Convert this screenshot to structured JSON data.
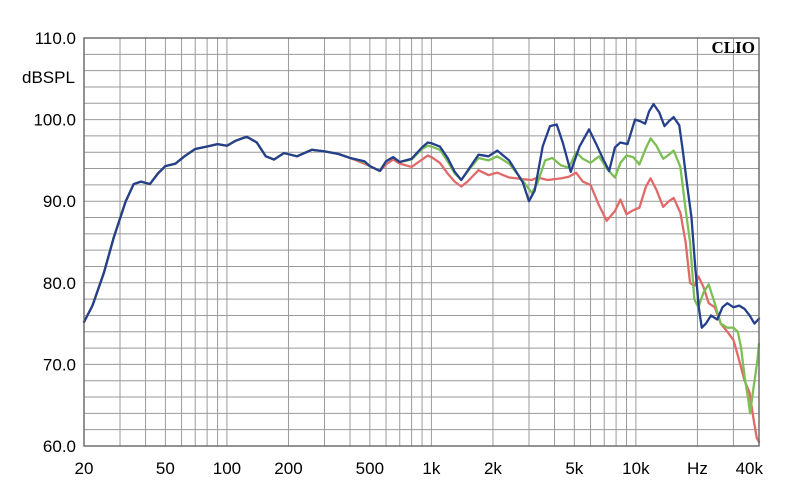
{
  "chart_data": {
    "type": "line",
    "ylabel": "dBSPL",
    "xunit": "Hz",
    "brand": "CLIO",
    "x_scale": "log",
    "xlim": [
      20,
      40000
    ],
    "ylim": [
      60,
      110
    ],
    "grid": true,
    "y_ticks": [
      {
        "value": 110,
        "label": "110.0"
      },
      {
        "value": 100,
        "label": "100.0"
      },
      {
        "value": 90,
        "label": "90.0"
      },
      {
        "value": 80,
        "label": "80.0"
      },
      {
        "value": 70,
        "label": "70.0"
      },
      {
        "value": 60,
        "label": "60.0"
      }
    ],
    "x_ticks": [
      {
        "value": 20,
        "label": "20"
      },
      {
        "value": 50,
        "label": "50"
      },
      {
        "value": 100,
        "label": "100"
      },
      {
        "value": 200,
        "label": "200"
      },
      {
        "value": 500,
        "label": "500"
      },
      {
        "value": 1000,
        "label": "1k"
      },
      {
        "value": 2000,
        "label": "2k"
      },
      {
        "value": 5000,
        "label": "5k"
      },
      {
        "value": 10000,
        "label": "10k"
      },
      {
        "value": 20000,
        "label": "Hz"
      },
      {
        "value": 40000,
        "label": "40k"
      }
    ],
    "series": [
      {
        "color": "#e06a6a",
        "points": [
          [
            20,
            75.2
          ],
          [
            22,
            77.2
          ],
          [
            25,
            81.2
          ],
          [
            28,
            85.6
          ],
          [
            32,
            90.0
          ],
          [
            35,
            92.1
          ],
          [
            38,
            92.4
          ],
          [
            42,
            92.1
          ],
          [
            46,
            93.4
          ],
          [
            50,
            94.3
          ],
          [
            56,
            94.6
          ],
          [
            62,
            95.5
          ],
          [
            70,
            96.4
          ],
          [
            80,
            96.7
          ],
          [
            90,
            97.0
          ],
          [
            100,
            96.8
          ],
          [
            110,
            97.4
          ],
          [
            125,
            97.9
          ],
          [
            140,
            97.2
          ],
          [
            155,
            95.5
          ],
          [
            170,
            95.1
          ],
          [
            190,
            95.9
          ],
          [
            220,
            95.5
          ],
          [
            260,
            96.3
          ],
          [
            300,
            96.1
          ],
          [
            350,
            95.8
          ],
          [
            400,
            95.3
          ],
          [
            470,
            94.6
          ],
          [
            500,
            94.3
          ],
          [
            560,
            93.7
          ],
          [
            600,
            94.5
          ],
          [
            650,
            95.1
          ],
          [
            700,
            94.6
          ],
          [
            800,
            94.2
          ],
          [
            900,
            95.1
          ],
          [
            960,
            95.6
          ],
          [
            1000,
            95.4
          ],
          [
            1100,
            94.7
          ],
          [
            1200,
            93.4
          ],
          [
            1300,
            92.4
          ],
          [
            1400,
            91.8
          ],
          [
            1500,
            92.4
          ],
          [
            1700,
            93.8
          ],
          [
            1900,
            93.2
          ],
          [
            2100,
            93.5
          ],
          [
            2400,
            92.9
          ],
          [
            2800,
            92.7
          ],
          [
            3100,
            92.6
          ],
          [
            3300,
            92.9
          ],
          [
            3700,
            92.6
          ],
          [
            4300,
            92.8
          ],
          [
            4700,
            93.0
          ],
          [
            5100,
            93.5
          ],
          [
            5500,
            92.4
          ],
          [
            6000,
            92.0
          ],
          [
            6600,
            89.5
          ],
          [
            7200,
            87.6
          ],
          [
            7900,
            88.8
          ],
          [
            8400,
            90.2
          ],
          [
            9000,
            88.4
          ],
          [
            9700,
            88.9
          ],
          [
            10400,
            89.2
          ],
          [
            11200,
            91.8
          ],
          [
            11800,
            92.8
          ],
          [
            12600,
            91.4
          ],
          [
            13600,
            89.3
          ],
          [
            14500,
            90.0
          ],
          [
            15300,
            90.4
          ],
          [
            16500,
            88.6
          ],
          [
            17500,
            85.0
          ],
          [
            18400,
            80.0
          ],
          [
            19300,
            79.6
          ],
          [
            20200,
            80.8
          ],
          [
            21400,
            79.5
          ],
          [
            22700,
            77.5
          ],
          [
            24300,
            77.0
          ],
          [
            26000,
            75.0
          ],
          [
            28000,
            74.0
          ],
          [
            30000,
            73.0
          ],
          [
            32000,
            70.5
          ],
          [
            34000,
            68.0
          ],
          [
            36000,
            66.5
          ],
          [
            37500,
            63.5
          ],
          [
            39000,
            61.0
          ],
          [
            40000,
            60.5
          ]
        ]
      },
      {
        "color": "#7cbf55",
        "points": [
          [
            20,
            75.2
          ],
          [
            22,
            77.2
          ],
          [
            25,
            81.2
          ],
          [
            28,
            85.6
          ],
          [
            32,
            90.0
          ],
          [
            35,
            92.1
          ],
          [
            38,
            92.4
          ],
          [
            42,
            92.1
          ],
          [
            46,
            93.4
          ],
          [
            50,
            94.3
          ],
          [
            56,
            94.6
          ],
          [
            62,
            95.5
          ],
          [
            70,
            96.4
          ],
          [
            80,
            96.7
          ],
          [
            90,
            97.0
          ],
          [
            100,
            96.8
          ],
          [
            110,
            97.4
          ],
          [
            125,
            97.9
          ],
          [
            140,
            97.2
          ],
          [
            155,
            95.5
          ],
          [
            170,
            95.1
          ],
          [
            190,
            95.9
          ],
          [
            220,
            95.5
          ],
          [
            260,
            96.3
          ],
          [
            300,
            96.1
          ],
          [
            350,
            95.8
          ],
          [
            400,
            95.3
          ],
          [
            470,
            94.8
          ],
          [
            500,
            94.3
          ],
          [
            560,
            93.7
          ],
          [
            600,
            94.9
          ],
          [
            650,
            95.4
          ],
          [
            700,
            94.8
          ],
          [
            800,
            95.1
          ],
          [
            900,
            96.4
          ],
          [
            960,
            96.8
          ],
          [
            1000,
            96.7
          ],
          [
            1100,
            96.3
          ],
          [
            1200,
            94.9
          ],
          [
            1300,
            93.4
          ],
          [
            1400,
            92.6
          ],
          [
            1500,
            93.6
          ],
          [
            1700,
            95.3
          ],
          [
            1900,
            95.0
          ],
          [
            2100,
            95.5
          ],
          [
            2400,
            94.6
          ],
          [
            2800,
            92.5
          ],
          [
            3100,
            91.0
          ],
          [
            3300,
            92.2
          ],
          [
            3600,
            95.0
          ],
          [
            3900,
            95.3
          ],
          [
            4300,
            94.4
          ],
          [
            4700,
            94.1
          ],
          [
            5100,
            96.0
          ],
          [
            5500,
            95.2
          ],
          [
            6000,
            94.7
          ],
          [
            6600,
            95.5
          ],
          [
            7200,
            94.0
          ],
          [
            7900,
            92.9
          ],
          [
            8400,
            94.7
          ],
          [
            9000,
            95.6
          ],
          [
            9700,
            95.4
          ],
          [
            10400,
            94.5
          ],
          [
            11200,
            96.5
          ],
          [
            11800,
            97.7
          ],
          [
            12600,
            96.8
          ],
          [
            13600,
            95.2
          ],
          [
            14500,
            95.7
          ],
          [
            15300,
            96.2
          ],
          [
            16500,
            94.2
          ],
          [
            17500,
            89.0
          ],
          [
            18400,
            85.0
          ],
          [
            19300,
            78.0
          ],
          [
            20200,
            77.0
          ],
          [
            21400,
            78.8
          ],
          [
            22700,
            79.8
          ],
          [
            24300,
            77.5
          ],
          [
            26000,
            75.0
          ],
          [
            28000,
            74.5
          ],
          [
            30000,
            74.5
          ],
          [
            31500,
            74.0
          ],
          [
            32700,
            72.0
          ],
          [
            34000,
            68.5
          ],
          [
            35300,
            66.0
          ],
          [
            36200,
            64.0
          ],
          [
            37300,
            66.5
          ],
          [
            38300,
            68.5
          ],
          [
            39300,
            70.5
          ],
          [
            40000,
            72.5
          ]
        ]
      },
      {
        "color": "#243f8c",
        "points": [
          [
            20,
            75.2
          ],
          [
            22,
            77.2
          ],
          [
            25,
            81.2
          ],
          [
            28,
            85.6
          ],
          [
            32,
            90.0
          ],
          [
            35,
            92.1
          ],
          [
            38,
            92.4
          ],
          [
            42,
            92.1
          ],
          [
            46,
            93.4
          ],
          [
            50,
            94.3
          ],
          [
            56,
            94.6
          ],
          [
            62,
            95.5
          ],
          [
            70,
            96.4
          ],
          [
            80,
            96.7
          ],
          [
            90,
            97.0
          ],
          [
            100,
            96.8
          ],
          [
            110,
            97.4
          ],
          [
            125,
            97.9
          ],
          [
            140,
            97.2
          ],
          [
            155,
            95.5
          ],
          [
            170,
            95.1
          ],
          [
            190,
            95.9
          ],
          [
            220,
            95.5
          ],
          [
            260,
            96.3
          ],
          [
            300,
            96.1
          ],
          [
            350,
            95.8
          ],
          [
            400,
            95.3
          ],
          [
            470,
            94.9
          ],
          [
            500,
            94.3
          ],
          [
            560,
            93.7
          ],
          [
            600,
            94.9
          ],
          [
            650,
            95.4
          ],
          [
            700,
            94.8
          ],
          [
            800,
            95.2
          ],
          [
            900,
            96.6
          ],
          [
            960,
            97.2
          ],
          [
            1000,
            97.1
          ],
          [
            1100,
            96.7
          ],
          [
            1200,
            95.3
          ],
          [
            1300,
            93.6
          ],
          [
            1400,
            92.6
          ],
          [
            1500,
            93.7
          ],
          [
            1700,
            95.7
          ],
          [
            1900,
            95.5
          ],
          [
            2100,
            96.2
          ],
          [
            2400,
            95.0
          ],
          [
            2800,
            92.3
          ],
          [
            3000,
            90.0
          ],
          [
            3200,
            91.3
          ],
          [
            3500,
            96.7
          ],
          [
            3800,
            99.2
          ],
          [
            4100,
            99.4
          ],
          [
            4400,
            97.1
          ],
          [
            4800,
            93.6
          ],
          [
            5300,
            96.7
          ],
          [
            5900,
            98.8
          ],
          [
            6400,
            97.0
          ],
          [
            6900,
            95.2
          ],
          [
            7400,
            93.7
          ],
          [
            7900,
            96.6
          ],
          [
            8400,
            97.2
          ],
          [
            9100,
            97.0
          ],
          [
            9900,
            100.0
          ],
          [
            10500,
            99.8
          ],
          [
            11100,
            99.5
          ],
          [
            11600,
            101.0
          ],
          [
            12200,
            101.9
          ],
          [
            13000,
            100.9
          ],
          [
            13800,
            99.2
          ],
          [
            14500,
            99.8
          ],
          [
            15300,
            100.3
          ],
          [
            16300,
            99.3
          ],
          [
            17000,
            96.0
          ],
          [
            17800,
            92.0
          ],
          [
            18700,
            88.0
          ],
          [
            19500,
            82.0
          ],
          [
            20300,
            77.0
          ],
          [
            21000,
            74.5
          ],
          [
            22000,
            75.0
          ],
          [
            23300,
            76.0
          ],
          [
            25000,
            75.5
          ],
          [
            26500,
            77.0
          ],
          [
            28000,
            77.5
          ],
          [
            30000,
            77.0
          ],
          [
            32000,
            77.2
          ],
          [
            34000,
            76.8
          ],
          [
            36000,
            76.0
          ],
          [
            38000,
            75.0
          ],
          [
            40000,
            75.6
          ]
        ]
      }
    ]
  }
}
